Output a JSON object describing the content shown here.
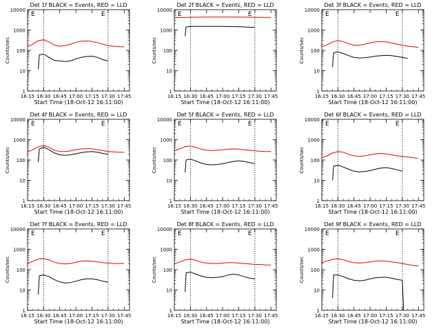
{
  "figure": {
    "background": "#ffffff",
    "axis_color": "#000000",
    "black_color": "#000000",
    "red_color": "#e00000"
  },
  "chart_data": [
    {
      "type": "line",
      "title": "Det 1f BLACK = Events, RED = LLD",
      "xlabel": "Start Time (18-Oct-12 16:11:00)",
      "ylabel": "Counts/sec",
      "xticks": [
        "16:15",
        "16:30",
        "16:45",
        "17:00",
        "17:15",
        "17:30",
        "17:45"
      ],
      "yticks": [
        "1",
        "10",
        "100",
        "1000",
        "10000"
      ],
      "yscale": "log",
      "ylim": [
        1,
        10000
      ],
      "xlim_minutes": [
        16.25,
        17.833
      ],
      "vlines": [
        "16:30",
        "17:30"
      ],
      "markers": [
        "E",
        "E"
      ],
      "series": [
        {
          "name": "BLACK = Events",
          "color": "#000000",
          "x": [
            "16:25",
            "16:26",
            "16:30",
            "16:35",
            "16:40",
            "16:45",
            "16:50",
            "16:55",
            "17:00",
            "17:05",
            "17:10",
            "17:15",
            "17:20",
            "17:25",
            "17:30"
          ],
          "values": [
            12,
            60,
            65,
            45,
            32,
            30,
            28,
            30,
            38,
            45,
            50,
            52,
            45,
            35,
            30
          ]
        },
        {
          "name": "RED = LLD",
          "color": "#e00000",
          "x": [
            "16:15",
            "16:20",
            "16:25",
            "16:30",
            "16:35",
            "16:40",
            "16:45",
            "16:50",
            "16:55",
            "17:00",
            "17:05",
            "17:10",
            "17:15",
            "17:20",
            "17:25",
            "17:30",
            "17:35",
            "17:40",
            "17:45"
          ],
          "values": [
            150,
            200,
            300,
            330,
            260,
            180,
            160,
            170,
            200,
            250,
            280,
            290,
            270,
            240,
            200,
            170,
            160,
            150,
            150
          ]
        }
      ]
    },
    {
      "type": "line",
      "title": "Det 2f BLACK = Events, RED = LLD",
      "xlabel": "Start Time (18-Oct-12 16:11:00)",
      "ylabel": "Counts/sec",
      "xticks": [
        "16:15",
        "16:30",
        "16:45",
        "17:00",
        "17:15",
        "17:30",
        "17:45"
      ],
      "yticks": [
        "1",
        "10",
        "100",
        "1000",
        "10000"
      ],
      "yscale": "log",
      "ylim": [
        1,
        10000
      ],
      "xlim_minutes": [
        16.25,
        17.833
      ],
      "vlines": [
        "16:30",
        "17:30"
      ],
      "markers": [
        "E",
        "E"
      ],
      "series": [
        {
          "name": "BLACK = Events",
          "color": "#000000",
          "x": [
            "16:25",
            "16:26",
            "16:30",
            "16:45",
            "17:00",
            "17:15",
            "17:30"
          ],
          "values": [
            500,
            1400,
            1500,
            1500,
            1500,
            1450,
            1350
          ]
        },
        {
          "name": "RED = LLD",
          "color": "#e00000",
          "x": [
            "16:15",
            "16:30",
            "16:45",
            "17:00",
            "17:15",
            "17:30",
            "17:45"
          ],
          "values": [
            4000,
            4200,
            4300,
            4300,
            4300,
            4200,
            4100
          ]
        }
      ]
    },
    {
      "type": "line",
      "title": "Det 3f BLACK = Events, RED = LLD",
      "xlabel": "Start Time (18-Oct-12 16:11:00)",
      "ylabel": "Counts/sec",
      "xticks": [
        "16:15",
        "16:30",
        "16:45",
        "17:00",
        "17:15",
        "17:30",
        "17:45"
      ],
      "yticks": [
        "1",
        "10",
        "100",
        "1000",
        "10000"
      ],
      "yscale": "log",
      "ylim": [
        1,
        10000
      ],
      "xlim_minutes": [
        16.25,
        17.833
      ],
      "vlines": [
        "16:30",
        "17:30"
      ],
      "markers": [
        "E",
        "E"
      ],
      "series": [
        {
          "name": "BLACK = Events",
          "color": "#000000",
          "x": [
            "16:25",
            "16:26",
            "16:30",
            "16:35",
            "16:40",
            "16:45",
            "16:50",
            "16:55",
            "17:00",
            "17:05",
            "17:10",
            "17:15",
            "17:20",
            "17:25",
            "17:30",
            "17:35"
          ],
          "values": [
            15,
            75,
            85,
            70,
            55,
            45,
            42,
            43,
            47,
            52,
            55,
            57,
            55,
            50,
            45,
            40
          ]
        },
        {
          "name": "RED = LLD",
          "color": "#e00000",
          "x": [
            "16:15",
            "16:20",
            "16:25",
            "16:30",
            "16:35",
            "16:40",
            "16:45",
            "16:50",
            "16:55",
            "17:00",
            "17:05",
            "17:10",
            "17:15",
            "17:20",
            "17:25",
            "17:30",
            "17:35",
            "17:40",
            "17:45"
          ],
          "values": [
            150,
            190,
            260,
            300,
            270,
            210,
            180,
            180,
            200,
            230,
            260,
            270,
            260,
            230,
            200,
            180,
            160,
            150,
            140
          ]
        }
      ]
    },
    {
      "type": "line",
      "title": "Det 4f BLACK = Events, RED = LLD",
      "xlabel": "Start Time (18-Oct-12 16:11:00)",
      "ylabel": "Counts/sec",
      "xticks": [
        "16:15",
        "16:30",
        "16:45",
        "17:00",
        "17:15",
        "17:30",
        "17:45"
      ],
      "yticks": [
        "1",
        "10",
        "100",
        "1000",
        "10000"
      ],
      "yscale": "log",
      "ylim": [
        1,
        10000
      ],
      "xlim_minutes": [
        16.25,
        17.833
      ],
      "vlines": [
        "16:30",
        "17:30"
      ],
      "markers": [
        "E",
        "E"
      ],
      "series": [
        {
          "name": "BLACK = Events",
          "color": "#000000",
          "x": [
            "16:25",
            "16:26",
            "16:30",
            "16:35",
            "16:40",
            "16:45",
            "16:50",
            "16:55",
            "17:00",
            "17:05",
            "17:10",
            "17:15",
            "17:20",
            "17:25",
            "17:30"
          ],
          "values": [
            80,
            350,
            420,
            320,
            220,
            180,
            170,
            180,
            200,
            230,
            250,
            260,
            240,
            210,
            190
          ]
        },
        {
          "name": "RED = LLD",
          "color": "#e00000",
          "x": [
            "16:15",
            "16:20",
            "16:25",
            "16:30",
            "16:35",
            "16:40",
            "16:45",
            "16:50",
            "16:55",
            "17:00",
            "17:05",
            "17:10",
            "17:15",
            "17:20",
            "17:25",
            "17:30",
            "17:35",
            "17:40",
            "17:45"
          ],
          "values": [
            250,
            320,
            450,
            520,
            420,
            300,
            260,
            260,
            280,
            320,
            350,
            360,
            350,
            320,
            290,
            260,
            250,
            240,
            240
          ]
        }
      ]
    },
    {
      "type": "line",
      "title": "Det 5f BLACK = Events, RED = LLD",
      "xlabel": "Start Time (18-Oct-12 16:11:00)",
      "ylabel": "Counts/sec",
      "xticks": [
        "16:15",
        "16:30",
        "16:45",
        "17:00",
        "17:15",
        "17:30",
        "17:45"
      ],
      "yticks": [
        "1",
        "10",
        "100",
        "1000",
        "10000"
      ],
      "yscale": "log",
      "ylim": [
        1,
        10000
      ],
      "xlim_minutes": [
        16.25,
        17.833
      ],
      "vlines": [
        "16:30",
        "17:30"
      ],
      "markers": [
        "E",
        "E"
      ],
      "series": [
        {
          "name": "BLACK = Events",
          "color": "#000000",
          "x": [
            "16:25",
            "16:26",
            "16:30",
            "16:35",
            "16:40",
            "16:45",
            "16:50",
            "16:55",
            "17:00",
            "17:05",
            "17:10",
            "17:15",
            "17:20",
            "17:25",
            "17:30"
          ],
          "values": [
            25,
            100,
            110,
            90,
            70,
            60,
            58,
            60,
            65,
            75,
            85,
            90,
            85,
            75,
            65
          ]
        },
        {
          "name": "RED = LLD",
          "color": "#e00000",
          "x": [
            "16:15",
            "16:20",
            "16:25",
            "16:30",
            "16:35",
            "16:40",
            "16:45",
            "16:50",
            "16:55",
            "17:00",
            "17:05",
            "17:10",
            "17:15",
            "17:20",
            "17:25",
            "17:30",
            "17:35",
            "17:40",
            "17:45"
          ],
          "values": [
            280,
            350,
            450,
            480,
            420,
            340,
            300,
            290,
            300,
            320,
            340,
            350,
            340,
            320,
            300,
            280,
            270,
            260,
            260
          ]
        }
      ]
    },
    {
      "type": "line",
      "title": "Det 6f BLACK = Events, RED = LLD",
      "xlabel": "Start Time (18-Oct-12 16:11:00)",
      "ylabel": "Counts/sec",
      "xticks": [
        "16:15",
        "16:30",
        "16:45",
        "17:00",
        "17:15",
        "17:30",
        "17:45"
      ],
      "yticks": [
        "1",
        "10",
        "100",
        "1000",
        "10000"
      ],
      "yscale": "log",
      "ylim": [
        1,
        10000
      ],
      "xlim_minutes": [
        16.25,
        17.833
      ],
      "vlines": [
        "16:30",
        "17:30"
      ],
      "markers": [
        "E",
        "E"
      ],
      "series": [
        {
          "name": "BLACK = Events",
          "color": "#000000",
          "x": [
            "16:25",
            "16:26",
            "16:30",
            "16:35",
            "16:40",
            "16:45",
            "16:50",
            "16:55",
            "17:00",
            "17:05",
            "17:10",
            "17:15",
            "17:20",
            "17:25",
            "17:30"
          ],
          "values": [
            10,
            50,
            55,
            45,
            35,
            28,
            26,
            27,
            30,
            35,
            40,
            42,
            38,
            33,
            28
          ]
        },
        {
          "name": "RED = LLD",
          "color": "#e00000",
          "x": [
            "16:15",
            "16:20",
            "16:25",
            "16:30",
            "16:35",
            "16:40",
            "16:45",
            "16:50",
            "16:55",
            "17:00",
            "17:05",
            "17:10",
            "17:15",
            "17:20",
            "17:25",
            "17:30",
            "17:35",
            "17:40",
            "17:45"
          ],
          "values": [
            130,
            160,
            220,
            260,
            240,
            190,
            160,
            150,
            160,
            180,
            200,
            210,
            200,
            180,
            160,
            150,
            140,
            130,
            120
          ]
        }
      ]
    },
    {
      "type": "line",
      "title": "Det 7f BLACK = Events, RED = LLD",
      "xlabel": "Start Time (18-Oct-12 16:11:00)",
      "ylabel": "Counts/sec",
      "xticks": [
        "16:15",
        "16:30",
        "16:45",
        "17:00",
        "17:15",
        "17:30",
        "17:45"
      ],
      "yticks": [
        "1",
        "10",
        "100",
        "1000",
        "10000"
      ],
      "yscale": "log",
      "ylim": [
        1,
        10000
      ],
      "xlim_minutes": [
        16.25,
        17.833
      ],
      "vlines": [
        "16:30",
        "17:30"
      ],
      "markers": [
        "E",
        "E"
      ],
      "series": [
        {
          "name": "BLACK = Events",
          "color": "#000000",
          "x": [
            "16:25",
            "16:26",
            "16:30",
            "16:35",
            "16:40",
            "16:45",
            "16:50",
            "16:55",
            "17:00",
            "17:05",
            "17:10",
            "17:15",
            "17:20",
            "17:25",
            "17:30"
          ],
          "values": [
            6,
            50,
            55,
            45,
            32,
            25,
            22,
            23,
            27,
            32,
            35,
            35,
            32,
            27,
            24
          ]
        },
        {
          "name": "RED = LLD",
          "color": "#e00000",
          "x": [
            "16:15",
            "16:20",
            "16:25",
            "16:30",
            "16:35",
            "16:40",
            "16:45",
            "16:50",
            "16:55",
            "17:00",
            "17:05",
            "17:10",
            "17:15",
            "17:20",
            "17:25",
            "17:30",
            "17:35",
            "17:40",
            "17:45"
          ],
          "values": [
            200,
            260,
            330,
            350,
            300,
            230,
            200,
            190,
            200,
            230,
            260,
            270,
            260,
            240,
            220,
            210,
            200,
            200,
            200
          ]
        }
      ]
    },
    {
      "type": "line",
      "title": "Det 8f BLACK = Events, RED = LLD",
      "xlabel": "Start Time (18-Oct-12 16:11:00)",
      "ylabel": "Counts/sec",
      "xticks": [
        "16:15",
        "16:30",
        "16:45",
        "17:00",
        "17:15",
        "17:30",
        "17:45"
      ],
      "yticks": [
        "1",
        "10",
        "100",
        "1000",
        "10000"
      ],
      "yscale": "log",
      "ylim": [
        1,
        10000
      ],
      "xlim_minutes": [
        16.25,
        17.833
      ],
      "vlines": [
        "16:30",
        "17:30"
      ],
      "markers": [
        "E",
        "E"
      ],
      "series": [
        {
          "name": "BLACK = Events",
          "color": "#000000",
          "x": [
            "16:25",
            "16:26",
            "16:30",
            "16:35",
            "16:40",
            "16:45",
            "16:50",
            "16:55",
            "17:00",
            "17:05",
            "17:10",
            "17:15",
            "17:20",
            "17:25",
            "17:30"
          ],
          "values": [
            8,
            70,
            75,
            60,
            48,
            42,
            40,
            42,
            45,
            55,
            60,
            55,
            45,
            38,
            35
          ]
        },
        {
          "name": "RED = LLD",
          "color": "#e00000",
          "x": [
            "16:15",
            "16:20",
            "16:25",
            "16:30",
            "16:35",
            "16:40",
            "16:45",
            "16:50",
            "16:55",
            "17:00",
            "17:05",
            "17:10",
            "17:15",
            "17:20",
            "17:25",
            "17:30",
            "17:35",
            "17:40",
            "17:45"
          ],
          "values": [
            190,
            240,
            300,
            330,
            290,
            230,
            210,
            200,
            200,
            210,
            220,
            220,
            210,
            200,
            190,
            180,
            180,
            170,
            170
          ]
        }
      ]
    },
    {
      "type": "line",
      "title": "Det 9f BLACK = Events, RED = LLD",
      "xlabel": "Start Time (18-Oct-12 16:11:00)",
      "ylabel": "Counts/sec",
      "xticks": [
        "16:15",
        "16:30",
        "16:45",
        "17:00",
        "17:15",
        "17:30",
        "17:45"
      ],
      "yticks": [
        "1",
        "10",
        "100",
        "1000",
        "10000"
      ],
      "yscale": "log",
      "ylim": [
        1,
        10000
      ],
      "xlim_minutes": [
        16.25,
        17.833
      ],
      "vlines": [
        "16:30",
        "17:30"
      ],
      "markers": [
        "E",
        "E"
      ],
      "series": [
        {
          "name": "BLACK = Events",
          "color": "#000000",
          "x": [
            "16:25",
            "16:26",
            "16:30",
            "16:35",
            "16:40",
            "16:45",
            "16:50",
            "16:55",
            "17:00",
            "17:05",
            "17:10",
            "17:15",
            "17:20",
            "17:25",
            "17:30",
            "17:31",
            "17:31"
          ],
          "values": [
            4,
            55,
            55,
            45,
            35,
            30,
            28,
            30,
            35,
            40,
            42,
            42,
            38,
            33,
            30,
            2,
            1
          ]
        },
        {
          "name": "RED = LLD",
          "color": "#e00000",
          "x": [
            "16:15",
            "16:20",
            "16:25",
            "16:30",
            "16:35",
            "16:40",
            "16:45",
            "16:50",
            "16:55",
            "17:00",
            "17:05",
            "17:10",
            "17:15",
            "17:20",
            "17:25",
            "17:30",
            "17:35",
            "17:40",
            "17:45"
          ],
          "values": [
            220,
            270,
            320,
            340,
            310,
            250,
            220,
            210,
            220,
            240,
            260,
            270,
            260,
            240,
            220,
            200,
            180,
            160,
            150
          ]
        }
      ]
    }
  ]
}
